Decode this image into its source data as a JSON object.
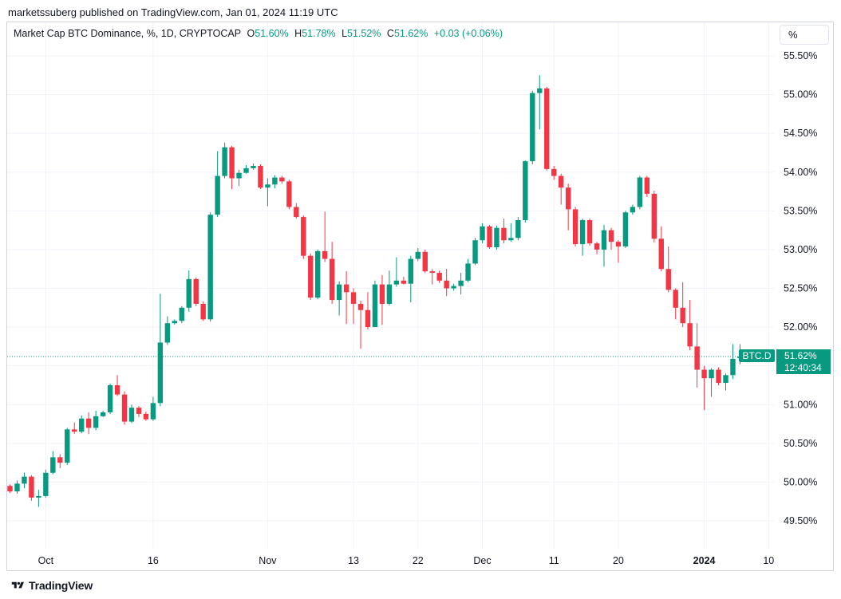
{
  "header": {
    "publish_line": "marketssuberg published on TradingView.com, Jan 01, 2024 11:19 UTC"
  },
  "legend": {
    "symbol": "Market Cap BTC Dominance, %, 1D, CRYPTOCAP",
    "o_label": "O",
    "o_value": "51.60%",
    "h_label": "H",
    "h_value": "51.78%",
    "l_label": "L",
    "l_value": "51.52%",
    "c_label": "C",
    "c_value": "51.62%",
    "change": "+0.03 (+0.06%)"
  },
  "toolbar": {
    "scale_button": "%"
  },
  "price_label": {
    "ticker": "BTC.D",
    "price": "51.62%",
    "countdown": "12:40:34"
  },
  "footer": {
    "brand": "TradingView"
  },
  "colors": {
    "up": "#089981",
    "down": "#f23645",
    "grid": "#f0f3fa",
    "text": "#131722",
    "last_line": "#089981"
  },
  "chart_data": {
    "type": "candlestick",
    "ylim": [
      49.2,
      55.75
    ],
    "y_ticks": [
      49.5,
      50.0,
      50.5,
      51.0,
      51.5,
      52.0,
      52.5,
      53.0,
      53.5,
      54.0,
      54.5,
      55.0,
      55.5
    ],
    "y_tick_labels": [
      "49.50%",
      "50.00%",
      "50.50%",
      "51.00%",
      "51.50%",
      "52.00%",
      "52.50%",
      "53.00%",
      "53.50%",
      "54.00%",
      "54.50%",
      "55.00%",
      "55.50%"
    ],
    "x_ticks": [
      {
        "index": 5,
        "label": "Oct"
      },
      {
        "index": 20,
        "label": "16"
      },
      {
        "index": 36,
        "label": "Nov"
      },
      {
        "index": 48,
        "label": "13"
      },
      {
        "index": 57,
        "label": "22"
      },
      {
        "index": 66,
        "label": "Dec"
      },
      {
        "index": 76,
        "label": "11"
      },
      {
        "index": 85,
        "label": "20"
      },
      {
        "index": 97,
        "label": "2024"
      },
      {
        "index": 106,
        "label": "10"
      }
    ],
    "last_price": 51.62,
    "candles": [
      [
        49.95,
        49.88,
        49.97,
        49.86
      ],
      [
        49.88,
        49.98,
        50.02,
        49.85
      ],
      [
        49.98,
        50.07,
        50.12,
        49.92
      ],
      [
        50.07,
        49.8,
        50.09,
        49.76
      ],
      [
        49.8,
        49.82,
        49.9,
        49.68
      ],
      [
        49.82,
        50.12,
        50.16,
        49.8
      ],
      [
        50.12,
        50.32,
        50.4,
        50.1
      ],
      [
        50.32,
        50.25,
        50.36,
        50.18
      ],
      [
        50.25,
        50.68,
        50.7,
        50.22
      ],
      [
        50.68,
        50.65,
        50.77,
        50.62
      ],
      [
        50.65,
        50.82,
        50.86,
        50.63
      ],
      [
        50.82,
        50.7,
        50.9,
        50.62
      ],
      [
        50.7,
        50.85,
        50.92,
        50.67
      ],
      [
        50.85,
        50.9,
        50.92,
        50.84
      ],
      [
        50.9,
        51.25,
        51.27,
        50.88
      ],
      [
        51.25,
        51.13,
        51.38,
        51.11
      ],
      [
        51.13,
        50.78,
        51.17,
        50.74
      ],
      [
        50.78,
        50.96,
        51.0,
        50.76
      ],
      [
        50.96,
        50.88,
        50.98,
        50.84
      ],
      [
        50.88,
        50.81,
        50.91,
        50.79
      ],
      [
        50.81,
        51.02,
        51.1,
        50.79
      ],
      [
        51.02,
        51.8,
        52.43,
        50.98
      ],
      [
        51.8,
        52.05,
        52.14,
        51.77
      ],
      [
        52.05,
        52.08,
        52.1,
        52.03
      ],
      [
        52.08,
        52.25,
        52.27,
        52.05
      ],
      [
        52.25,
        52.62,
        52.73,
        52.2
      ],
      [
        52.62,
        52.3,
        52.64,
        52.27
      ],
      [
        52.3,
        52.1,
        52.33,
        52.08
      ],
      [
        52.1,
        53.45,
        53.48,
        52.07
      ],
      [
        53.45,
        53.95,
        54.27,
        53.42
      ],
      [
        53.95,
        54.32,
        54.38,
        53.92
      ],
      [
        54.32,
        53.92,
        54.34,
        53.78
      ],
      [
        53.92,
        53.99,
        54.03,
        53.82
      ],
      [
        53.99,
        54.05,
        54.09,
        53.98
      ],
      [
        54.05,
        54.08,
        54.11,
        54.03
      ],
      [
        54.08,
        53.8,
        54.1,
        53.78
      ],
      [
        53.8,
        53.84,
        53.92,
        53.56
      ],
      [
        53.84,
        53.93,
        53.96,
        53.79
      ],
      [
        53.93,
        53.88,
        53.95,
        53.85
      ],
      [
        53.88,
        53.55,
        53.9,
        53.52
      ],
      [
        53.55,
        53.42,
        53.6,
        53.4
      ],
      [
        53.42,
        52.92,
        53.44,
        52.88
      ],
      [
        52.92,
        52.38,
        52.95,
        52.35
      ],
      [
        52.38,
        52.98,
        53.0,
        52.36
      ],
      [
        52.98,
        52.88,
        53.49,
        52.84
      ],
      [
        52.88,
        52.35,
        53.1,
        52.3
      ],
      [
        52.35,
        52.55,
        52.59,
        52.15
      ],
      [
        52.55,
        52.45,
        52.72,
        52.04
      ],
      [
        52.45,
        52.3,
        52.5,
        52.04
      ],
      [
        52.3,
        52.22,
        52.34,
        51.72
      ],
      [
        52.22,
        52.0,
        52.45,
        51.97
      ],
      [
        52.0,
        52.55,
        52.6,
        52.02
      ],
      [
        52.55,
        52.3,
        52.67,
        52.03
      ],
      [
        52.3,
        52.55,
        52.73,
        52.28
      ],
      [
        52.55,
        52.6,
        52.9,
        52.52
      ],
      [
        52.6,
        52.56,
        52.65,
        52.55
      ],
      [
        52.56,
        52.88,
        52.92,
        52.32
      ],
      [
        52.88,
        52.97,
        53.02,
        52.85
      ],
      [
        52.97,
        52.72,
        53.0,
        52.7
      ],
      [
        52.72,
        52.7,
        52.75,
        52.55
      ],
      [
        52.7,
        52.6,
        52.73,
        52.57
      ],
      [
        52.6,
        52.5,
        52.75,
        52.4
      ],
      [
        52.5,
        52.53,
        52.56,
        52.47
      ],
      [
        52.53,
        52.6,
        52.7,
        52.42
      ],
      [
        52.6,
        52.82,
        52.88,
        52.58
      ],
      [
        52.82,
        53.12,
        53.15,
        52.8
      ],
      [
        53.12,
        53.3,
        53.34,
        53.08
      ],
      [
        53.3,
        53.03,
        53.32,
        53.01
      ],
      [
        53.03,
        53.28,
        53.31,
        53.0
      ],
      [
        53.28,
        53.12,
        53.4,
        53.08
      ],
      [
        53.12,
        53.15,
        53.34,
        53.1
      ],
      [
        53.15,
        53.38,
        53.42,
        53.12
      ],
      [
        53.38,
        54.14,
        54.15,
        53.35
      ],
      [
        54.14,
        55.02,
        55.05,
        54.1
      ],
      [
        55.02,
        55.08,
        55.25,
        54.55
      ],
      [
        55.08,
        54.04,
        55.1,
        54.02
      ],
      [
        54.04,
        53.95,
        54.08,
        53.9
      ],
      [
        53.95,
        53.8,
        53.98,
        53.58
      ],
      [
        53.8,
        53.52,
        53.85,
        53.25
      ],
      [
        53.52,
        53.07,
        53.55,
        53.04
      ],
      [
        53.07,
        53.38,
        53.4,
        52.92
      ],
      [
        53.38,
        53.08,
        53.4,
        53.05
      ],
      [
        53.08,
        53.0,
        53.1,
        52.94
      ],
      [
        53.0,
        53.25,
        53.32,
        52.78
      ],
      [
        53.25,
        53.1,
        53.28,
        53.0
      ],
      [
        53.1,
        53.04,
        53.12,
        52.83
      ],
      [
        53.04,
        53.48,
        53.5,
        53.02
      ],
      [
        53.48,
        53.55,
        53.58,
        53.45
      ],
      [
        53.55,
        53.93,
        53.95,
        53.52
      ],
      [
        53.93,
        53.72,
        53.95,
        53.68
      ],
      [
        53.72,
        53.14,
        53.76,
        53.09
      ],
      [
        53.14,
        52.75,
        53.3,
        52.72
      ],
      [
        52.75,
        52.48,
        53.04,
        52.45
      ],
      [
        52.48,
        52.25,
        52.5,
        52.1
      ],
      [
        52.25,
        52.05,
        52.58,
        52.0
      ],
      [
        52.05,
        51.75,
        52.35,
        51.7
      ],
      [
        51.75,
        51.45,
        52.05,
        51.22
      ],
      [
        51.45,
        51.34,
        51.5,
        50.93
      ],
      [
        51.34,
        51.45,
        51.47,
        51.1
      ],
      [
        51.45,
        51.28,
        51.48,
        51.25
      ],
      [
        51.28,
        51.38,
        51.4,
        51.18
      ],
      [
        51.38,
        51.59,
        51.78,
        51.33
      ],
      [
        51.6,
        51.62,
        51.78,
        51.52
      ]
    ]
  }
}
